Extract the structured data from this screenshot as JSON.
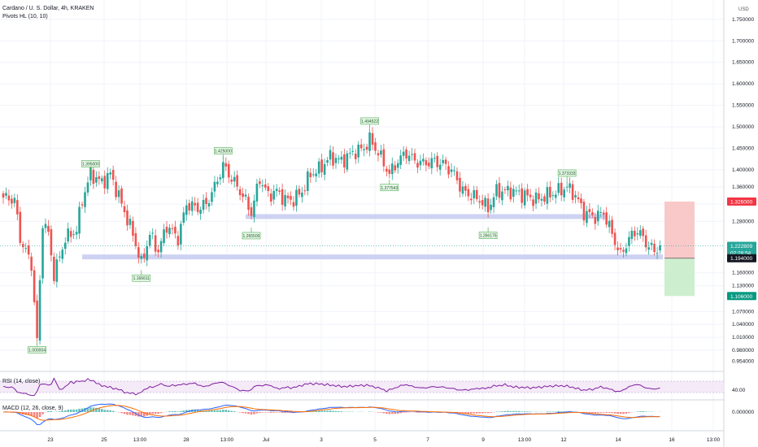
{
  "header": {
    "symbol_line": "Cardano / U. S. Dollar, 4h, KRAKEN",
    "indicator": "Pivots HL (10, 10)"
  },
  "currency": "USD",
  "rsi_label": "RSI (14, close)",
  "macd_label": "MACD (12, 26, close, 9)",
  "rsi_tick": "40.00",
  "macd_tick": "0.000000",
  "price_axis": {
    "ticks": [
      "1.750000",
      "1.700000",
      "1.650000",
      "1.600000",
      "1.550000",
      "1.500000",
      "1.450000",
      "1.400000",
      "1.360000",
      "1.320000",
      "1.280000",
      "1.160000",
      "1.130000",
      "1.070000",
      "1.040000",
      "1.010000",
      "0.980000",
      "0.954000"
    ]
  },
  "price_tags": {
    "stop": "1.326000",
    "current": "1.222809",
    "countdown": "02:28:54",
    "entry": "1.194000",
    "target": "1.106000"
  },
  "time_axis": [
    "23",
    "25",
    "13:00",
    "28",
    "13:00",
    "Jul",
    "3",
    "5",
    "7",
    "9",
    "13:00",
    "12",
    "14",
    "16",
    "13:00"
  ],
  "colors": {
    "up": "#26a69a",
    "down": "#ef5350",
    "level_band": "#c5caf0",
    "rsi_line": "#7e1fa0",
    "macd_line": "#2962ff",
    "signal_line": "#ff6d00",
    "stop_zone": "#f9c9c9",
    "target_zone": "#cdeecf"
  },
  "chart_data": {
    "type": "candlestick",
    "ylim": [
      0.94,
      1.78
    ],
    "pivots": [
      {
        "label": "1.395000",
        "price": 1.395,
        "kind": "high",
        "bar": 31
      },
      {
        "label": "1.425000",
        "price": 1.425,
        "kind": "high",
        "bar": 78
      },
      {
        "label": "1.494522",
        "price": 1.4945,
        "kind": "high",
        "bar": 130
      },
      {
        "label": "1.373333",
        "price": 1.3733,
        "kind": "high",
        "bar": 200
      },
      {
        "label": "1.000004",
        "price": 1.0,
        "kind": "low",
        "bar": 12
      },
      {
        "label": "1.166611",
        "price": 1.1666,
        "kind": "low",
        "bar": 49
      },
      {
        "label": "1.265500",
        "price": 1.2655,
        "kind": "low",
        "bar": 88
      },
      {
        "label": "1.377543",
        "price": 1.3775,
        "kind": "low",
        "bar": 137
      },
      {
        "label": "1.266175",
        "price": 1.2662,
        "kind": "low",
        "bar": 172
      }
    ],
    "levels": [
      {
        "price": 1.291,
        "from_bar": 86,
        "to_bar": 214
      },
      {
        "price": 1.197,
        "from_bar": 28,
        "to_bar": 234
      }
    ],
    "position": {
      "stop": 1.326,
      "entry": 1.194,
      "target": 1.106
    },
    "anchors": [
      [
        0,
        1.335
      ],
      [
        4,
        1.33
      ],
      [
        6,
        1.24
      ],
      [
        10,
        1.18
      ],
      [
        12,
        1.0
      ],
      [
        14,
        1.28
      ],
      [
        16,
        1.25
      ],
      [
        18,
        1.155
      ],
      [
        22,
        1.24
      ],
      [
        26,
        1.26
      ],
      [
        28,
        1.33
      ],
      [
        31,
        1.39
      ],
      [
        35,
        1.37
      ],
      [
        38,
        1.39
      ],
      [
        42,
        1.32
      ],
      [
        46,
        1.25
      ],
      [
        49,
        1.18
      ],
      [
        52,
        1.25
      ],
      [
        55,
        1.21
      ],
      [
        58,
        1.27
      ],
      [
        62,
        1.24
      ],
      [
        65,
        1.32
      ],
      [
        69,
        1.31
      ],
      [
        72,
        1.32
      ],
      [
        75,
        1.36
      ],
      [
        78,
        1.41
      ],
      [
        82,
        1.37
      ],
      [
        85,
        1.34
      ],
      [
        88,
        1.3
      ],
      [
        91,
        1.38
      ],
      [
        94,
        1.34
      ],
      [
        97,
        1.35
      ],
      [
        100,
        1.33
      ],
      [
        103,
        1.33
      ],
      [
        106,
        1.35
      ],
      [
        109,
        1.39
      ],
      [
        112,
        1.4
      ],
      [
        116,
        1.43
      ],
      [
        120,
        1.42
      ],
      [
        124,
        1.44
      ],
      [
        128,
        1.45
      ],
      [
        130,
        1.47
      ],
      [
        133,
        1.44
      ],
      [
        137,
        1.39
      ],
      [
        140,
        1.42
      ],
      [
        143,
        1.44
      ],
      [
        146,
        1.42
      ],
      [
        149,
        1.415
      ],
      [
        153,
        1.42
      ],
      [
        157,
        1.41
      ],
      [
        160,
        1.39
      ],
      [
        163,
        1.35
      ],
      [
        166,
        1.34
      ],
      [
        169,
        1.33
      ],
      [
        172,
        1.31
      ],
      [
        175,
        1.35
      ],
      [
        178,
        1.35
      ],
      [
        181,
        1.35
      ],
      [
        185,
        1.34
      ],
      [
        189,
        1.33
      ],
      [
        193,
        1.34
      ],
      [
        197,
        1.35
      ],
      [
        200,
        1.36
      ],
      [
        203,
        1.34
      ],
      [
        206,
        1.3
      ],
      [
        210,
        1.29
      ],
      [
        213,
        1.3
      ],
      [
        216,
        1.25
      ],
      [
        219,
        1.2
      ],
      [
        222,
        1.24
      ],
      [
        225,
        1.26
      ],
      [
        228,
        1.23
      ],
      [
        231,
        1.21
      ],
      [
        233,
        1.223
      ]
    ],
    "rsi": {
      "label": "RSI (14, close)",
      "ylim": [
        10,
        90
      ],
      "band": [
        30,
        70
      ]
    },
    "macd": {
      "label": "MACD (12, 26, close, 9)"
    }
  }
}
